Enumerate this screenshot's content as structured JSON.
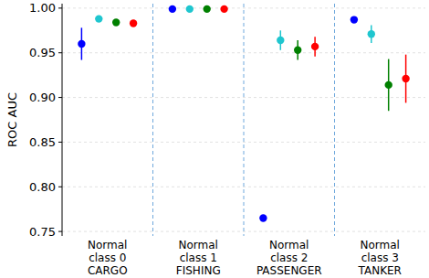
{
  "chart_data": {
    "type": "scatter",
    "y_label": "ROC AUC",
    "categories": [
      "Normal\nclass 0\nCARGO",
      "Normal\nclass 1\nFISHING",
      "Normal\nclass 2\nPASSENGER",
      "Normal\nclass 3\nTANKER"
    ],
    "series": [
      {
        "color": "#0000ff",
        "values": [
          0.96,
          0.999,
          0.765,
          0.987
        ],
        "errors": [
          0.018,
          0.001,
          0.002,
          0.002
        ]
      },
      {
        "color": "#1fc6cf",
        "values": [
          0.988,
          0.999,
          0.964,
          0.971
        ],
        "errors": [
          0.002,
          0.001,
          0.011,
          0.01
        ]
      },
      {
        "color": "#008000",
        "values": [
          0.984,
          0.999,
          0.953,
          0.914
        ],
        "errors": [
          0.002,
          0.001,
          0.011,
          0.029
        ]
      },
      {
        "color": "#ff0000",
        "values": [
          0.983,
          0.999,
          0.957,
          0.921
        ],
        "errors": [
          0.002,
          0.001,
          0.011,
          0.027
        ]
      }
    ],
    "marker": "circle",
    "ylim": [
      0.745,
      1.005
    ],
    "yticks": [
      0.75,
      {
        "value": 0.8,
        "label": "0.80"
      },
      0.85,
      {
        "value": 0.9,
        "label": "0.90"
      },
      0.95,
      {
        "value": 1.0,
        "label": "1.00"
      }
    ],
    "grid": true
  }
}
